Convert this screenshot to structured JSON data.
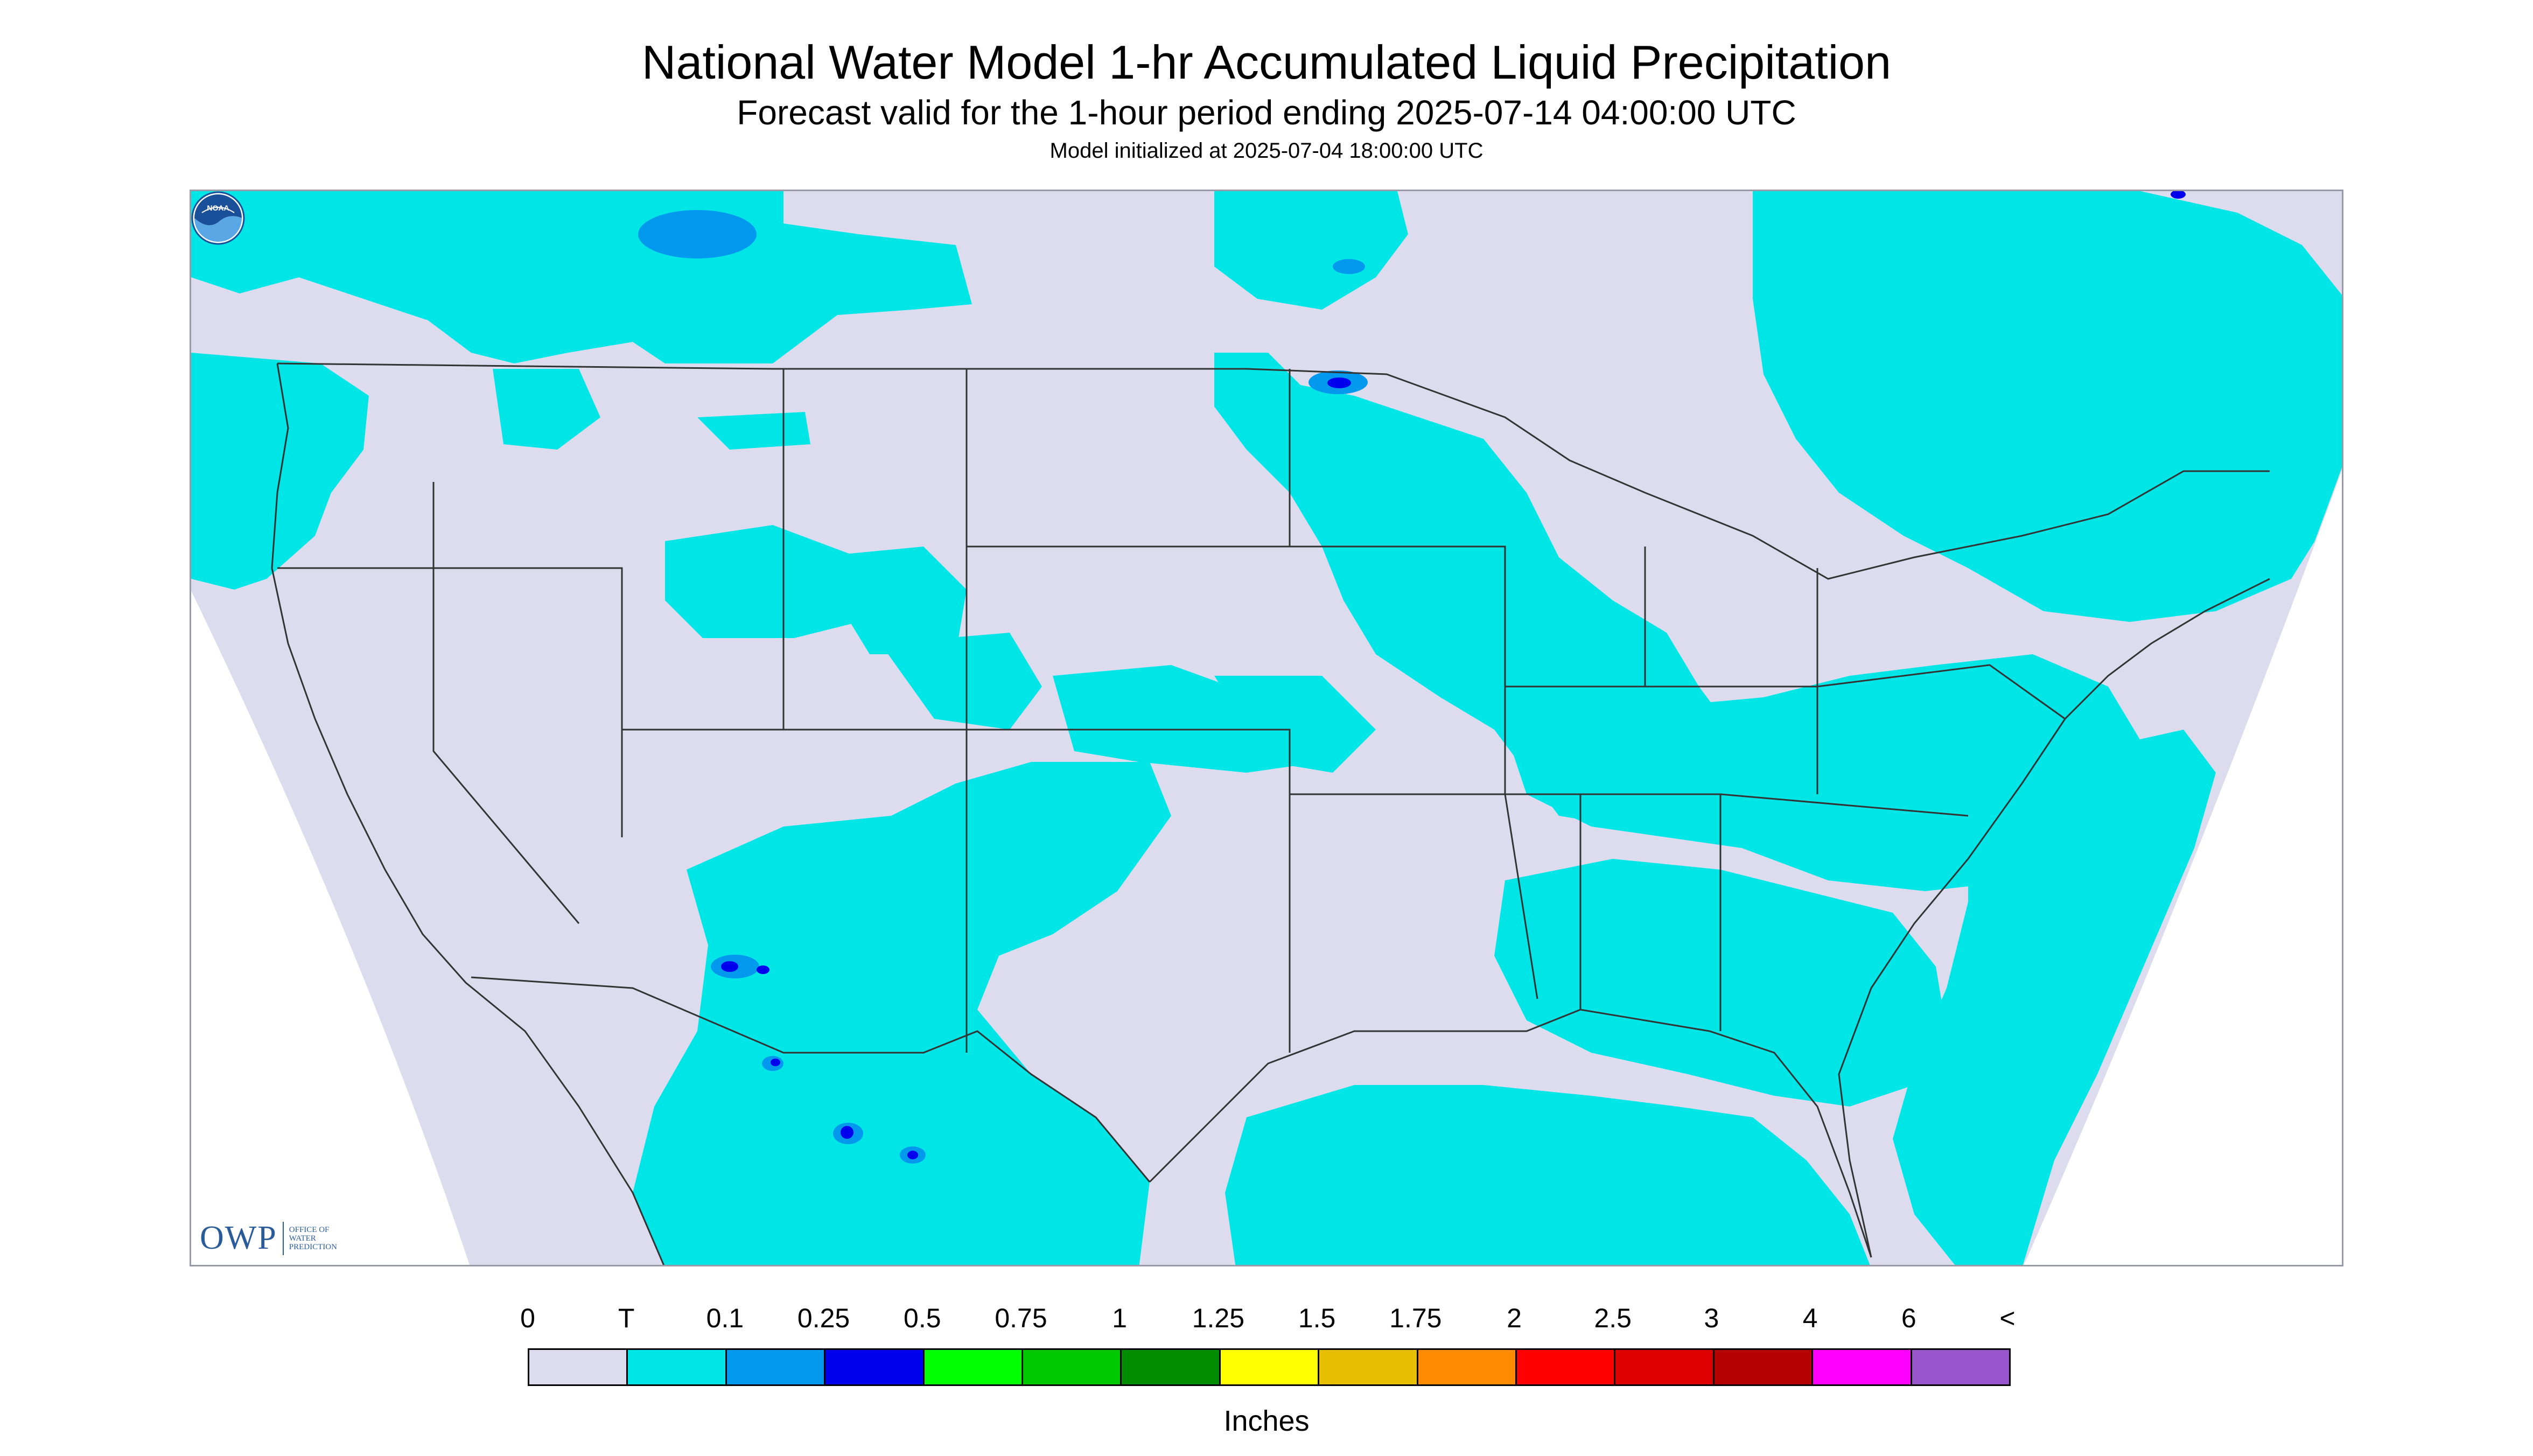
{
  "title": "National Water Model 1-hr Accumulated Liquid Precipitation",
  "subtitle": "Forecast valid for the 1-hour period ending 2025-07-14 04:00:00 UTC",
  "init_text": "Model initialized at 2025-07-04 18:00:00 UTC",
  "map": {
    "region": "CONUS",
    "background_color": "#dcdcee",
    "outside_color": "#ffffff",
    "precip_colors": {
      "trace": "#00e6e6",
      "light": "#0099ee",
      "moderate": "#0000ee"
    },
    "outline_color": "#333333"
  },
  "logos": {
    "owp_mark": "OWP",
    "owp_text_1": "Office of",
    "owp_text_2": "Water",
    "owp_text_3": "Prediction",
    "noaa_text": "NOAA",
    "noaa_icon": "noaa-logo-icon"
  },
  "legend": {
    "labels": [
      "0",
      "T",
      "0.1",
      "0.25",
      "0.5",
      "0.75",
      "1",
      "1.25",
      "1.5",
      "1.75",
      "2",
      "2.5",
      "3",
      "4",
      "6",
      "<"
    ],
    "colors": [
      "#dcdcee",
      "#00e6e6",
      "#0099ee",
      "#0000ee",
      "#00ff00",
      "#00c800",
      "#008c00",
      "#ffff00",
      "#e6c000",
      "#ff8c00",
      "#ff0000",
      "#dc0000",
      "#b40000",
      "#ff00ff",
      "#9955cc"
    ],
    "units": "Inches"
  }
}
